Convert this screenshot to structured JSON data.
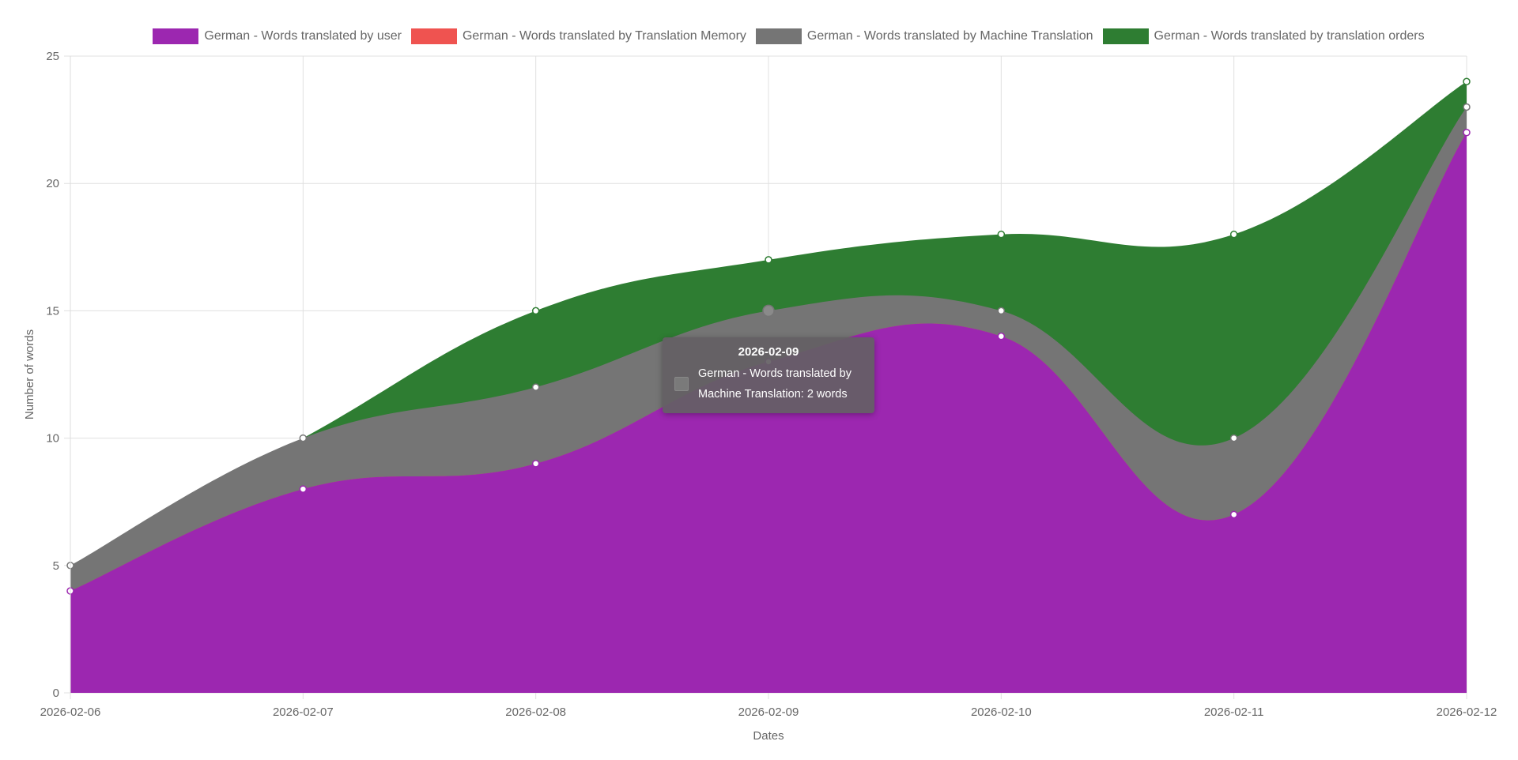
{
  "chart_data": {
    "type": "area",
    "stacked": true,
    "xlabel": "Dates",
    "ylabel": "Number of words",
    "ylim": [
      0,
      25
    ],
    "yticks": [
      0,
      5,
      10,
      15,
      20,
      25
    ],
    "grid": true,
    "legend_position": "top",
    "categories": [
      "2026-02-06",
      "2026-02-07",
      "2026-02-08",
      "2026-02-09",
      "2026-02-10",
      "2026-02-11",
      "2026-02-12"
    ],
    "series": [
      {
        "name": "German - Words translated by user",
        "color": "#9c27b0",
        "values": [
          4,
          8,
          9,
          13,
          14,
          7,
          22
        ]
      },
      {
        "name": "German - Words translated by Translation Memory",
        "color": "#ef5350",
        "values": [
          0,
          0,
          0,
          0,
          0,
          0,
          0
        ]
      },
      {
        "name": "German - Words translated by Machine Translation",
        "color": "#757575",
        "values": [
          1,
          2,
          3,
          2,
          1,
          3,
          1
        ]
      },
      {
        "name": "German - Words translated by translation orders",
        "color": "#2e7d32",
        "values": [
          0,
          0,
          3,
          2,
          3,
          8,
          1
        ]
      }
    ],
    "tooltip": {
      "title": "2026-02-09",
      "line1": "German - Words translated by",
      "line2": "Machine Translation: 2 words"
    }
  }
}
